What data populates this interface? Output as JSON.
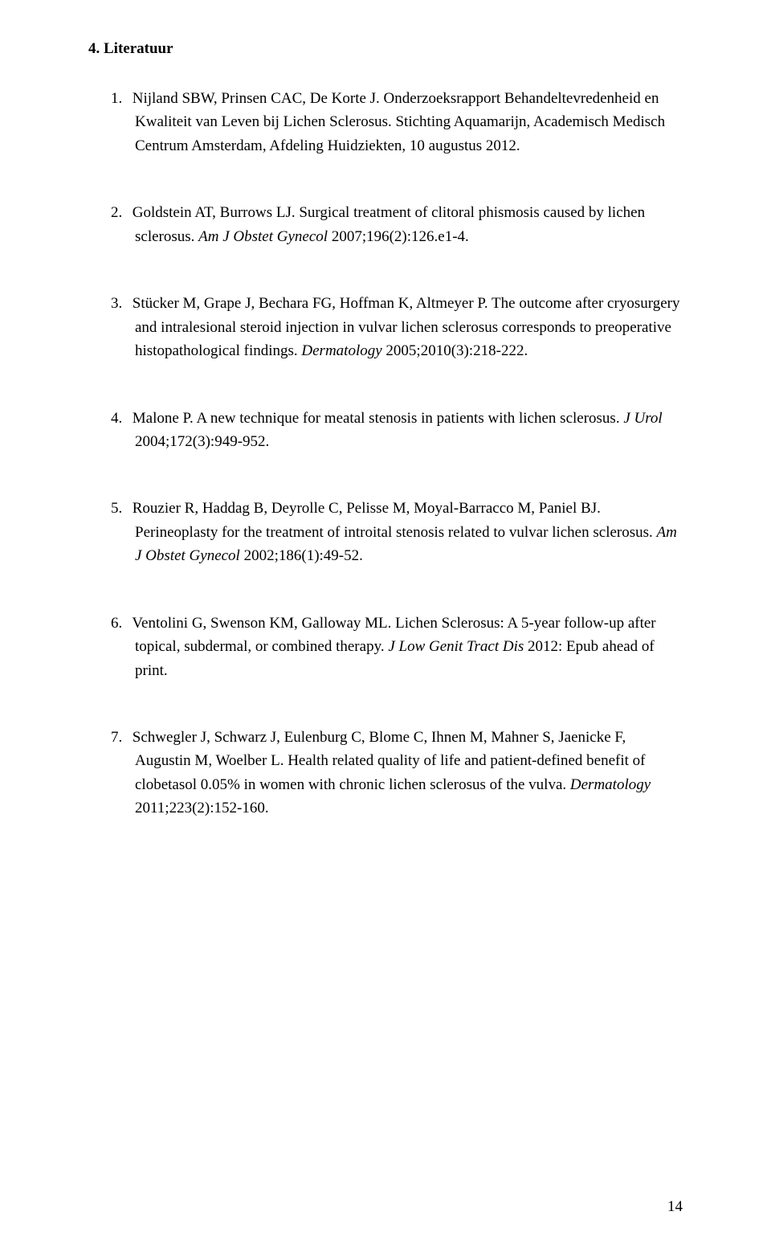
{
  "heading": "4. Literatuur",
  "references": [
    {
      "num": "1.",
      "text_a": "Nijland SBW, Prinsen CAC, De Korte J. Onderzoeksrapport Behandeltevredenheid en Kwaliteit van Leven bij Lichen Sclerosus. Stichting Aquamarijn, Academisch Medisch Centrum Amsterdam, Afdeling Huidziekten, 10 augustus 2012.",
      "journal": "",
      "text_b": ""
    },
    {
      "num": "2.",
      "text_a": "Goldstein AT, Burrows LJ. Surgical treatment of clitoral phismosis caused by lichen sclerosus. ",
      "journal": "Am J Obstet Gynecol",
      "text_b": " 2007;196(2):126.e1-4."
    },
    {
      "num": "3.",
      "text_a": "Stücker M, Grape J, Bechara FG, Hoffman K, Altmeyer P. The outcome after cryosurgery and intralesional steroid injection in vulvar lichen sclerosus corresponds to preoperative histopathological findings. ",
      "journal": "Dermatology",
      "text_b": " 2005;2010(3):218-222."
    },
    {
      "num": "4.",
      "text_a": "Malone P. A new technique for meatal stenosis in patients with lichen sclerosus. ",
      "journal": "J Urol",
      "text_b": " 2004;172(3):949-952."
    },
    {
      "num": "5.",
      "text_a": "Rouzier R, Haddag B, Deyrolle C, Pelisse M, Moyal-Barracco M, Paniel BJ. Perineoplasty for the treatment of introital stenosis related to vulvar lichen sclerosus. ",
      "journal": "Am J Obstet Gynecol",
      "text_b": " 2002;186(1):49-52."
    },
    {
      "num": "6.",
      "text_a": "Ventolini G, Swenson KM, Galloway ML. Lichen Sclerosus: A 5-year follow-up after topical, subdermal, or combined therapy. ",
      "journal": "J Low Genit Tract Dis",
      "text_b": " 2012: Epub ahead of print."
    },
    {
      "num": "7.",
      "text_a": "Schwegler J, Schwarz J, Eulenburg C, Blome C, Ihnen M, Mahner S, Jaenicke F, Augustin M, Woelber L. Health related quality of life and patient-defined benefit of clobetasol 0.05% in women with chronic lichen sclerosus of the vulva. ",
      "journal": "Dermatology",
      "text_b": " 2011;223(2):152-160."
    }
  ],
  "page_number": "14"
}
